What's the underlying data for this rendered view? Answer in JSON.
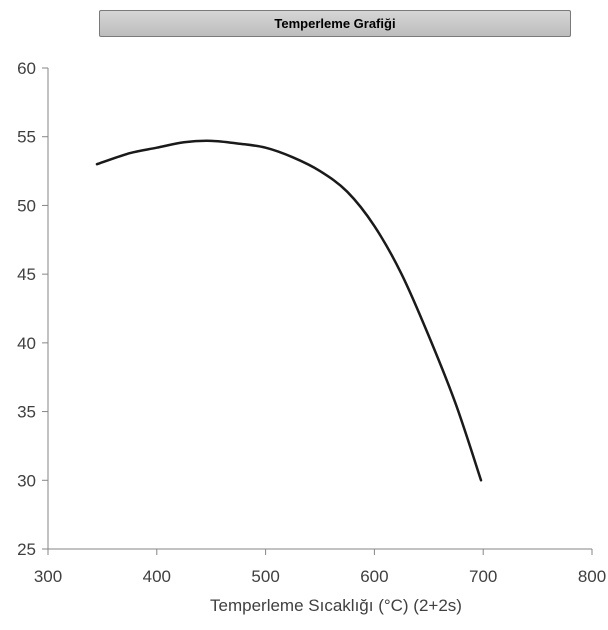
{
  "chart_data": {
    "type": "line",
    "title": "Temperleme Grafiği",
    "xlabel": "Temperleme Sıcaklığı (°C) (2+2s)",
    "ylabel": "",
    "xlim": [
      300,
      800
    ],
    "ylim": [
      25,
      60
    ],
    "x_ticks": [
      "300",
      "400",
      "500",
      "600",
      "700",
      "800"
    ],
    "y_ticks": [
      "25",
      "30",
      "35",
      "40",
      "45",
      "50",
      "55",
      "60"
    ],
    "grid": false,
    "legend": "none",
    "series": [
      {
        "color": "#1a1a1a",
        "x": [
          345,
          375,
          400,
          425,
          450,
          475,
          500,
          525,
          550,
          575,
          600,
          625,
          650,
          675,
          698
        ],
        "y": [
          53.0,
          53.8,
          54.2,
          54.6,
          54.7,
          54.5,
          54.2,
          53.5,
          52.5,
          51.0,
          48.5,
          45.0,
          40.5,
          35.5,
          30.0
        ]
      }
    ]
  }
}
